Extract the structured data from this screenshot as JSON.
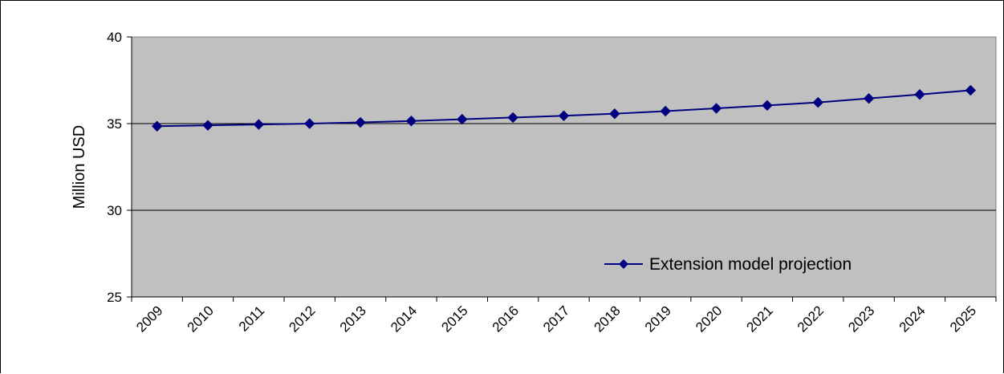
{
  "chart_data": {
    "type": "line",
    "title": "",
    "xlabel": "",
    "ylabel": "Million USD",
    "ylim": [
      25,
      40
    ],
    "yticks": [
      "25",
      "30",
      "35",
      "40"
    ],
    "grid": "horizontal",
    "legend_position": "bottom-right inside plot",
    "categories": [
      "2009",
      "2010",
      "2011",
      "2012",
      "2013",
      "2014",
      "2015",
      "2016",
      "2017",
      "2018",
      "2019",
      "2020",
      "2021",
      "2022",
      "2023",
      "2024",
      "2025"
    ],
    "series": [
      {
        "name": "Extension model projection",
        "color": "#000080",
        "marker": "diamond",
        "values": [
          34.85,
          34.9,
          34.95,
          35.0,
          35.07,
          35.15,
          35.25,
          35.35,
          35.45,
          35.57,
          35.72,
          35.88,
          36.05,
          36.22,
          36.45,
          36.68,
          36.92
        ]
      }
    ],
    "plot_background": "#c0c0c0"
  }
}
